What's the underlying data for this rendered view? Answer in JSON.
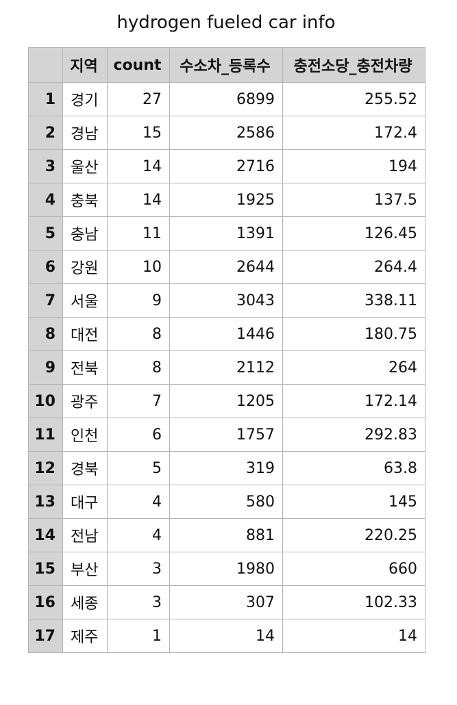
{
  "chart_data": {
    "type": "table",
    "title": "hydrogen fueled car info",
    "columns": [
      "",
      "지역",
      "count",
      "수소차_등록수",
      "충전소당_충전차량"
    ],
    "rows": [
      {
        "index": "1",
        "region": "경기",
        "count": "27",
        "registrations": "6899",
        "per_station": "255.52"
      },
      {
        "index": "2",
        "region": "경남",
        "count": "15",
        "registrations": "2586",
        "per_station": "172.4"
      },
      {
        "index": "3",
        "region": "울산",
        "count": "14",
        "registrations": "2716",
        "per_station": "194"
      },
      {
        "index": "4",
        "region": "충북",
        "count": "14",
        "registrations": "1925",
        "per_station": "137.5"
      },
      {
        "index": "5",
        "region": "충남",
        "count": "11",
        "registrations": "1391",
        "per_station": "126.45"
      },
      {
        "index": "6",
        "region": "강원",
        "count": "10",
        "registrations": "2644",
        "per_station": "264.4"
      },
      {
        "index": "7",
        "region": "서울",
        "count": "9",
        "registrations": "3043",
        "per_station": "338.11"
      },
      {
        "index": "8",
        "region": "대전",
        "count": "8",
        "registrations": "1446",
        "per_station": "180.75"
      },
      {
        "index": "9",
        "region": "전북",
        "count": "8",
        "registrations": "2112",
        "per_station": "264"
      },
      {
        "index": "10",
        "region": "광주",
        "count": "7",
        "registrations": "1205",
        "per_station": "172.14"
      },
      {
        "index": "11",
        "region": "인천",
        "count": "6",
        "registrations": "1757",
        "per_station": "292.83"
      },
      {
        "index": "12",
        "region": "경북",
        "count": "5",
        "registrations": "319",
        "per_station": "63.8"
      },
      {
        "index": "13",
        "region": "대구",
        "count": "4",
        "registrations": "580",
        "per_station": "145"
      },
      {
        "index": "14",
        "region": "전남",
        "count": "4",
        "registrations": "881",
        "per_station": "220.25"
      },
      {
        "index": "15",
        "region": "부산",
        "count": "3",
        "registrations": "1980",
        "per_station": "660"
      },
      {
        "index": "16",
        "region": "세종",
        "count": "3",
        "registrations": "307",
        "per_station": "102.33"
      },
      {
        "index": "17",
        "region": "제주",
        "count": "1",
        "registrations": "14",
        "per_station": "14"
      }
    ]
  }
}
